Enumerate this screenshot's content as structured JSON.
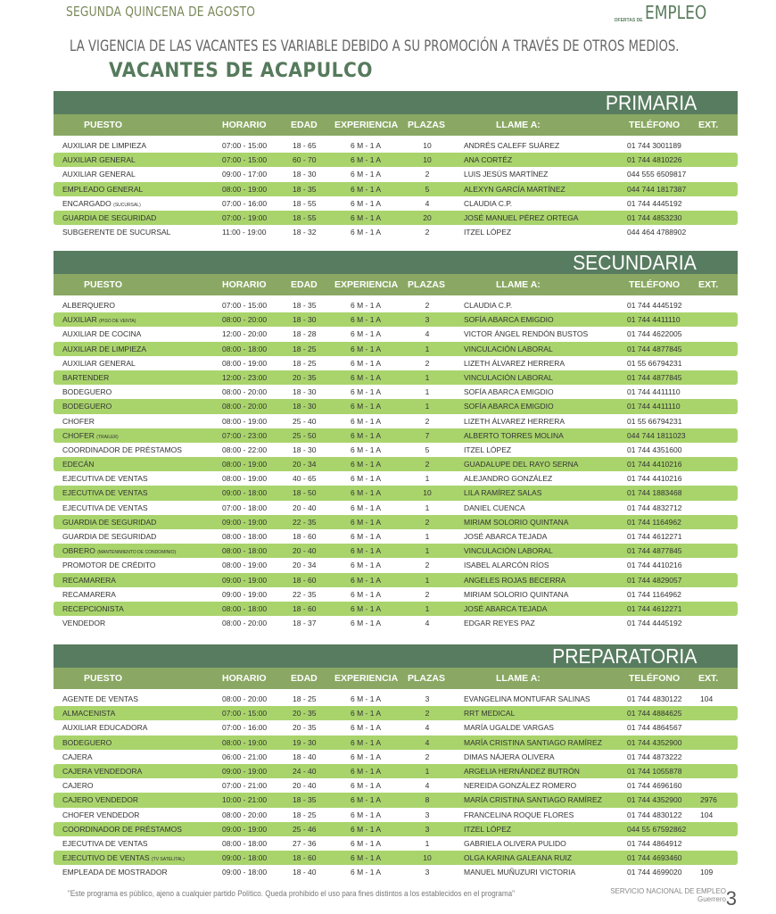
{
  "header": {
    "period": "SEGUNDA QUINCENA DE AGOSTO",
    "logo_small": "OFERTAS DE",
    "logo_big": "EMPLEO",
    "notice": "LA VIGENCIA DE LAS VACANTES ES VARIABLE DEBIDO A SU PROMOCIÓN A TRAVÉS DE OTROS MEDIOS.",
    "title": "VACANTES DE ACAPULCO"
  },
  "columns": [
    "PUESTO",
    "HORARIO",
    "EDAD",
    "EXPERIENCIA",
    "PLAZAS",
    "LLAME A:",
    "TELÉFONO",
    "EXT."
  ],
  "colors": {
    "section_bar": "#587c5f",
    "column_header": "#8aa863",
    "row_highlight": "#a9d46c",
    "title": "#567a5c"
  },
  "sections": [
    {
      "name": "PRIMARIA",
      "rows": [
        [
          "AUXILIAR DE LIMPIEZA",
          "",
          "07:00 - 15:00",
          "18 - 65",
          "6 M - 1 A",
          "10",
          "ANDRÉS CALEFF SUÁREZ",
          "01 744 3001189",
          ""
        ],
        [
          "AUXILIAR GENERAL",
          "",
          "07:00 - 15:00",
          "60 - 70",
          "6 M - 1 A",
          "10",
          "ANA CORTÉZ",
          "01 744 4810226",
          ""
        ],
        [
          "AUXILIAR GENERAL",
          "",
          "09:00 - 17:00",
          "18 - 30",
          "6 M - 1 A",
          "2",
          "LUIS JESÚS MARTÍNEZ",
          "044 555 6509817",
          ""
        ],
        [
          "EMPLEADO GENERAL",
          "",
          "08:00 - 19:00",
          "18 - 35",
          "6 M - 1 A",
          "5",
          "ALEXYN GARCÍA MARTÍNEZ",
          "044 744 1817387",
          ""
        ],
        [
          "ENCARGADO",
          "(SUCURSAL)",
          "07:00 - 16:00",
          "18 - 55",
          "6 M - 1 A",
          "4",
          "CLAUDIA C.P.",
          "01 744 4445192",
          ""
        ],
        [
          "GUARDIA DE SEGURIDAD",
          "",
          "07:00 - 19:00",
          "18 - 55",
          "6 M - 1 A",
          "20",
          "JOSÉ MANUEL PÉREZ ORTEGA",
          "01 744 4853230",
          ""
        ],
        [
          "SUBGERENTE DE SUCURSAL",
          "",
          "11:00 - 19:00",
          "18 - 32",
          "6 M - 1 A",
          "2",
          "ITZEL LÓPEZ",
          "044 464 4788902",
          ""
        ]
      ]
    },
    {
      "name": "SECUNDARIA",
      "rows": [
        [
          "ALBERQUERO",
          "",
          "07:00 - 15:00",
          "18 - 35",
          "6 M - 1 A",
          "2",
          "CLAUDIA C.P.",
          "01 744 4445192",
          ""
        ],
        [
          "AUXILIAR",
          "(PISO DE VENTA)",
          "08:00 - 20:00",
          "18 - 30",
          "6 M - 1 A",
          "3",
          "SOFÍA ABARCA EMIGDIO",
          "01 744 4411110",
          ""
        ],
        [
          "AUXILIAR DE COCINA",
          "",
          "12:00 - 20:00",
          "18 - 28",
          "6 M - 1 A",
          "4",
          "VICTOR ÁNGEL RENDÓN BUSTOS",
          "01 744 4622005",
          ""
        ],
        [
          "AUXILIAR DE LIMPIEZA",
          "",
          "08:00 - 18:00",
          "18 - 25",
          "6 M - 1 A",
          "1",
          "VINCULACIÓN LABORAL",
          "01 744 4877845",
          ""
        ],
        [
          "AUXILIAR GENERAL",
          "",
          "08:00 - 19:00",
          "18 - 25",
          "6 M - 1 A",
          "2",
          "LIZETH ÁLVAREZ HERRERA",
          "01 55 66794231",
          ""
        ],
        [
          "BARTENDER",
          "",
          "12:00 - 23:00",
          "20 - 35",
          "6 M - 1 A",
          "1",
          "VINCULACIÓN LABORAL",
          "01 744 4877845",
          ""
        ],
        [
          "BODEGUERO",
          "",
          "08:00 - 20:00",
          "18 - 30",
          "6 M - 1 A",
          "1",
          "SOFÍA ABARCA EMIGDIO",
          "01 744 4411110",
          ""
        ],
        [
          "BODEGUERO",
          "",
          "08:00 - 20:00",
          "18 - 30",
          "6 M - 1 A",
          "1",
          "SOFÍA ABARCA EMIGDIO",
          "01 744 4411110",
          ""
        ],
        [
          "CHOFER",
          "",
          "08:00 - 19:00",
          "25 - 40",
          "6 M - 1 A",
          "2",
          "LIZETH ÁLVAREZ HERRERA",
          "01 55 66794231",
          ""
        ],
        [
          "CHOFER",
          "(TRAILER)",
          "07:00 - 23:00",
          "25 - 50",
          "6 M - 1 A",
          "7",
          "ALBERTO TORRES MOLINA",
          "044 744 1811023",
          ""
        ],
        [
          "COORDINADOR DE PRÉSTAMOS",
          "",
          "08:00 - 22:00",
          "18 - 30",
          "6 M - 1 A",
          "5",
          "ITZEL LÓPEZ",
          "01 744 4351600",
          ""
        ],
        [
          "EDECÁN",
          "",
          "08:00 - 19:00",
          "20 - 34",
          "6 M - 1 A",
          "2",
          "GUADALUPE DEL RAYO SERNA",
          "01 744 4410216",
          ""
        ],
        [
          "EJECUTIVA DE VENTAS",
          "",
          "08:00 - 19:00",
          "40 - 65",
          "6 M - 1 A",
          "1",
          "ALEJANDRO GONZÁLEZ",
          "01 744 4410216",
          ""
        ],
        [
          "EJECUTIVA DE VENTAS",
          "",
          "09:00 - 18:00",
          "18 - 50",
          "6 M - 1 A",
          "10",
          "LILA RAMÍREZ SALAS",
          "01 744 1883468",
          ""
        ],
        [
          "EJECUTIVA DE VENTAS",
          "",
          "07:00 - 18:00",
          "20 - 40",
          "6 M - 1 A",
          "1",
          "DANIEL CUENCA",
          "01 744 4832712",
          ""
        ],
        [
          "GUARDIA DE SEGURIDAD",
          "",
          "09:00 - 19:00",
          "22 - 35",
          "6 M - 1 A",
          "2",
          "MIRIAM SOLORIO QUINTANA",
          "01 744 1164962",
          ""
        ],
        [
          "GUARDIA DE SEGURIDAD",
          "",
          "08:00 - 18:00",
          "18 - 60",
          "6 M - 1 A",
          "1",
          "JOSÉ ABARCA TEJADA",
          "01 744 4612271",
          ""
        ],
        [
          "OBRERO",
          "(MANTENIMIENTO DE CONDOMINIO)",
          "08:00 - 18:00",
          "20 - 40",
          "6 M - 1 A",
          "1",
          "VINCULACIÓN LABORAL",
          "01 744 4877845",
          ""
        ],
        [
          "PROMOTOR DE CRÉDITO",
          "",
          "08:00 - 19:00",
          "20 - 34",
          "6 M - 1 A",
          "2",
          "ISABEL ALARCÓN RÍOS",
          "01 744 4410216",
          ""
        ],
        [
          "RECAMARERA",
          "",
          "09:00 - 19:00",
          "18 - 60",
          "6 M - 1 A",
          "1",
          "ANGELES ROJAS BECERRA",
          "01 744 4829057",
          ""
        ],
        [
          "RECAMARERA",
          "",
          "09:00 - 19:00",
          "22 - 35",
          "6 M - 1 A",
          "2",
          "MIRIAM SOLORIO QUINTANA",
          "01 744 1164962",
          ""
        ],
        [
          "RECEPCIONISTA",
          "",
          "08:00 - 18:00",
          "18 - 60",
          "6 M - 1 A",
          "1",
          "JOSÉ ABARCA TEJADA",
          "01 744 4612271",
          ""
        ],
        [
          "VENDEDOR",
          "",
          "08:00 - 20:00",
          "18 - 37",
          "6 M - 1 A",
          "4",
          "EDGAR REYES PAZ",
          "01 744 4445192",
          ""
        ]
      ]
    },
    {
      "name": "PREPARATORIA",
      "rows": [
        [
          "AGENTE DE VENTAS",
          "",
          "08:00 - 20:00",
          "18 - 25",
          "6 M - 1 A",
          "3",
          "EVANGELINA MONTUFAR SALINAS",
          "01 744 4830122",
          "104"
        ],
        [
          "ALMACENISTA",
          "",
          "07:00 - 15:00",
          "20 - 35",
          "6 M - 1 A",
          "2",
          "RRT MEDICAL",
          "01 744 4884625",
          ""
        ],
        [
          "AUXILIAR EDUCADORA",
          "",
          "07:00 - 16:00",
          "20 - 35",
          "6 M - 1 A",
          "4",
          "MARÍA UGALDE VARGAS",
          "01 744 4864567",
          ""
        ],
        [
          "BODEGUERO",
          "",
          "08:00 - 19:00",
          "19 - 30",
          "6 M - 1 A",
          "4",
          "MARÍA CRISTINA SANTIAGO RAMÍREZ",
          "01 744 4352900",
          ""
        ],
        [
          "CAJERA",
          "",
          "06:00 - 21:00",
          "18 - 40",
          "6 M - 1 A",
          "2",
          "DIMAS NÁJERA OLIVERA",
          "01 744 4873222",
          ""
        ],
        [
          "CAJERA VENDEDORA",
          "",
          "09:00 - 19:00",
          "24 - 40",
          "6 M - 1 A",
          "1",
          "ARGELIA HERNÁNDEZ BUTRÓN",
          "01 744 1055878",
          ""
        ],
        [
          "CAJERO",
          "",
          "07:00 - 21:00",
          "20 - 40",
          "6 M - 1 A",
          "4",
          "NEREIDA GONZÁLEZ ROMERO",
          "01 744 4696160",
          ""
        ],
        [
          "CAJERO VENDEDOR",
          "",
          "10:00 - 21:00",
          "18 - 35",
          "6 M - 1 A",
          "8",
          "MARÍA CRISTINA SANTIAGO RAMÍREZ",
          "01 744 4352900",
          "2976"
        ],
        [
          "CHOFER VENDEDOR",
          "",
          "08:00 - 20:00",
          "18 - 25",
          "6 M - 1 A",
          "3",
          "FRANCELINA ROQUE FLORES",
          "01 744 4830122",
          "104"
        ],
        [
          "COORDINADOR DE PRÉSTAMOS",
          "",
          "09:00 - 19:00",
          "25 - 46",
          "6 M - 1 A",
          "3",
          "ITZEL LÓPEZ",
          "044 55 67592862",
          ""
        ],
        [
          "EJECUTIVA DE VENTAS",
          "",
          "08:00 - 18:00",
          "27 - 36",
          "6 M - 1 A",
          "1",
          "GABRIELA OLIVERA PULIDO",
          "01 744 4864912",
          ""
        ],
        [
          "EJECUTIVO DE VENTAS",
          "(TV SATELITAL)",
          "09:00 - 18:00",
          "18 - 60",
          "6 M - 1 A",
          "10",
          "OLGA KARINA GALEANA RUIZ",
          "01 744 4693460",
          ""
        ],
        [
          "EMPLEADA DE MOSTRADOR",
          "",
          "09:00 - 18:00",
          "18 - 40",
          "6 M - 1 A",
          "3",
          "MANUEL MUÑUZURI VICTORIA",
          "01 744 4699020",
          "109"
        ]
      ]
    }
  ],
  "footer": {
    "disclaimer": "\"Este programa es público, ajeno a cualquier partido Político. Queda prohibido el uso para fines distintos a los establecidos en el programa\"",
    "org_line1": "SERVICIO NACIONAL DE EMPLEO",
    "org_line2": "Guerrero",
    "page": "3"
  }
}
